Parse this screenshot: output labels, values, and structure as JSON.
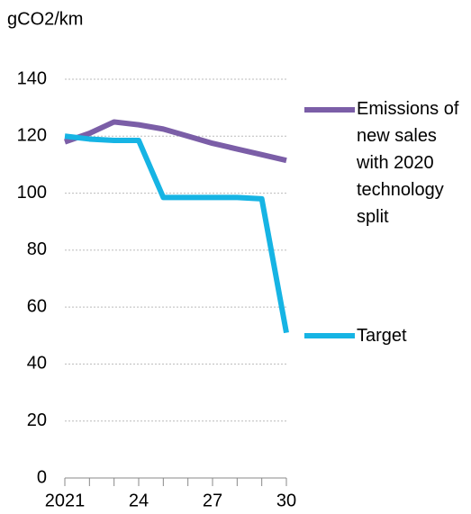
{
  "chart_data": {
    "type": "line",
    "y_axis_label": "gCO2/km",
    "categories": [
      "2021",
      null,
      null,
      "24",
      null,
      null,
      "27",
      null,
      null,
      "30"
    ],
    "series": [
      {
        "name": "Emissions of new sales with 2020 technology split",
        "color": "#7b5ea7",
        "values": [
          118,
          121,
          125,
          124,
          122.5,
          120,
          117.5,
          115.5,
          113.5,
          111.5
        ]
      },
      {
        "name": "Target",
        "color": "#16b4e4",
        "values": [
          120,
          119,
          118.5,
          118.5,
          98.5,
          98.5,
          98.5,
          98.5,
          98,
          51
        ]
      }
    ],
    "ylim": [
      0,
      140
    ],
    "yticks": [
      0,
      20,
      40,
      60,
      80,
      100,
      120,
      140
    ],
    "grid": true
  }
}
